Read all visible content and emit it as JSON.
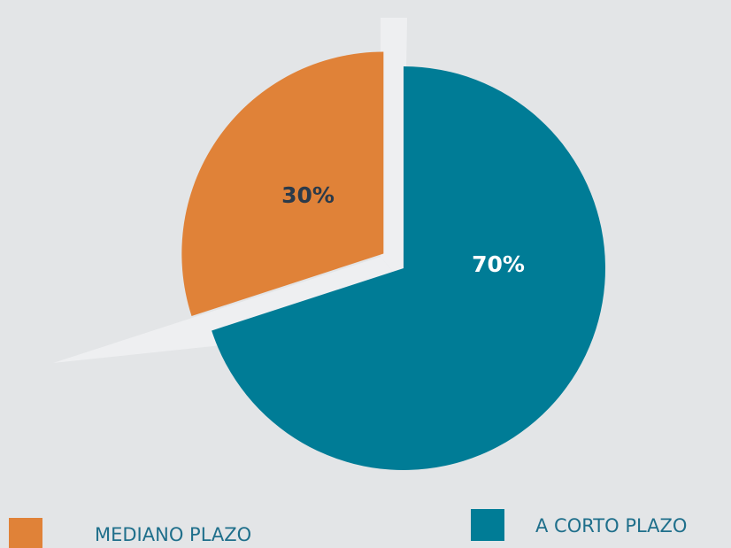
{
  "chart_data": {
    "type": "pie",
    "categories": [
      "MEDIANO PLAZO",
      "A CORTO PLAZO"
    ],
    "values": [
      30,
      70
    ],
    "value_labels": [
      "30%",
      "70%"
    ],
    "colors": [
      "#e08238",
      "#007c96"
    ],
    "explode": [
      true,
      false
    ],
    "legend": "bottom"
  }
}
